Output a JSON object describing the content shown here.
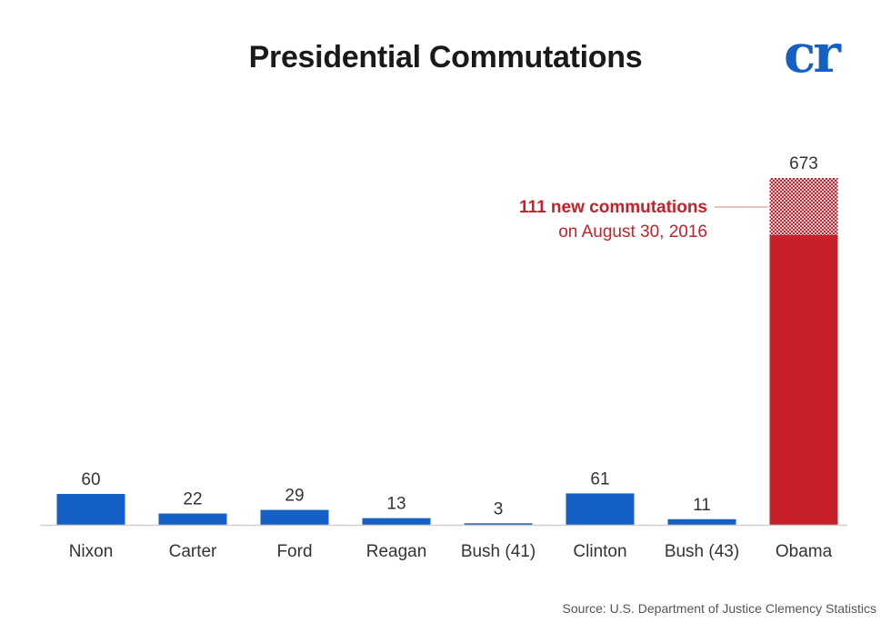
{
  "logo_text": "cr",
  "colors": {
    "blue": "#1560c4",
    "red": "#c8202a",
    "axis": "#cfcfcf",
    "label": "#333333",
    "logo": "#1560c4"
  },
  "chart_data": {
    "type": "bar",
    "title": "Presidential Commutations",
    "xlabel": "",
    "ylabel": "",
    "categories": [
      "Nixon",
      "Carter",
      "Ford",
      "Reagan",
      "Bush (41)",
      "Clinton",
      "Bush (43)",
      "Obama"
    ],
    "values": [
      60,
      22,
      29,
      13,
      3,
      61,
      11,
      673
    ],
    "ylim": [
      0,
      673
    ],
    "grid": false,
    "legend": "none",
    "highlight": {
      "category": "Obama",
      "new_commutations": 111,
      "annotation_line1": "111 new commutations",
      "annotation_line2": "on August 30, 2016"
    }
  },
  "source": "Source: U.S. Department of Justice Clemency Statistics"
}
